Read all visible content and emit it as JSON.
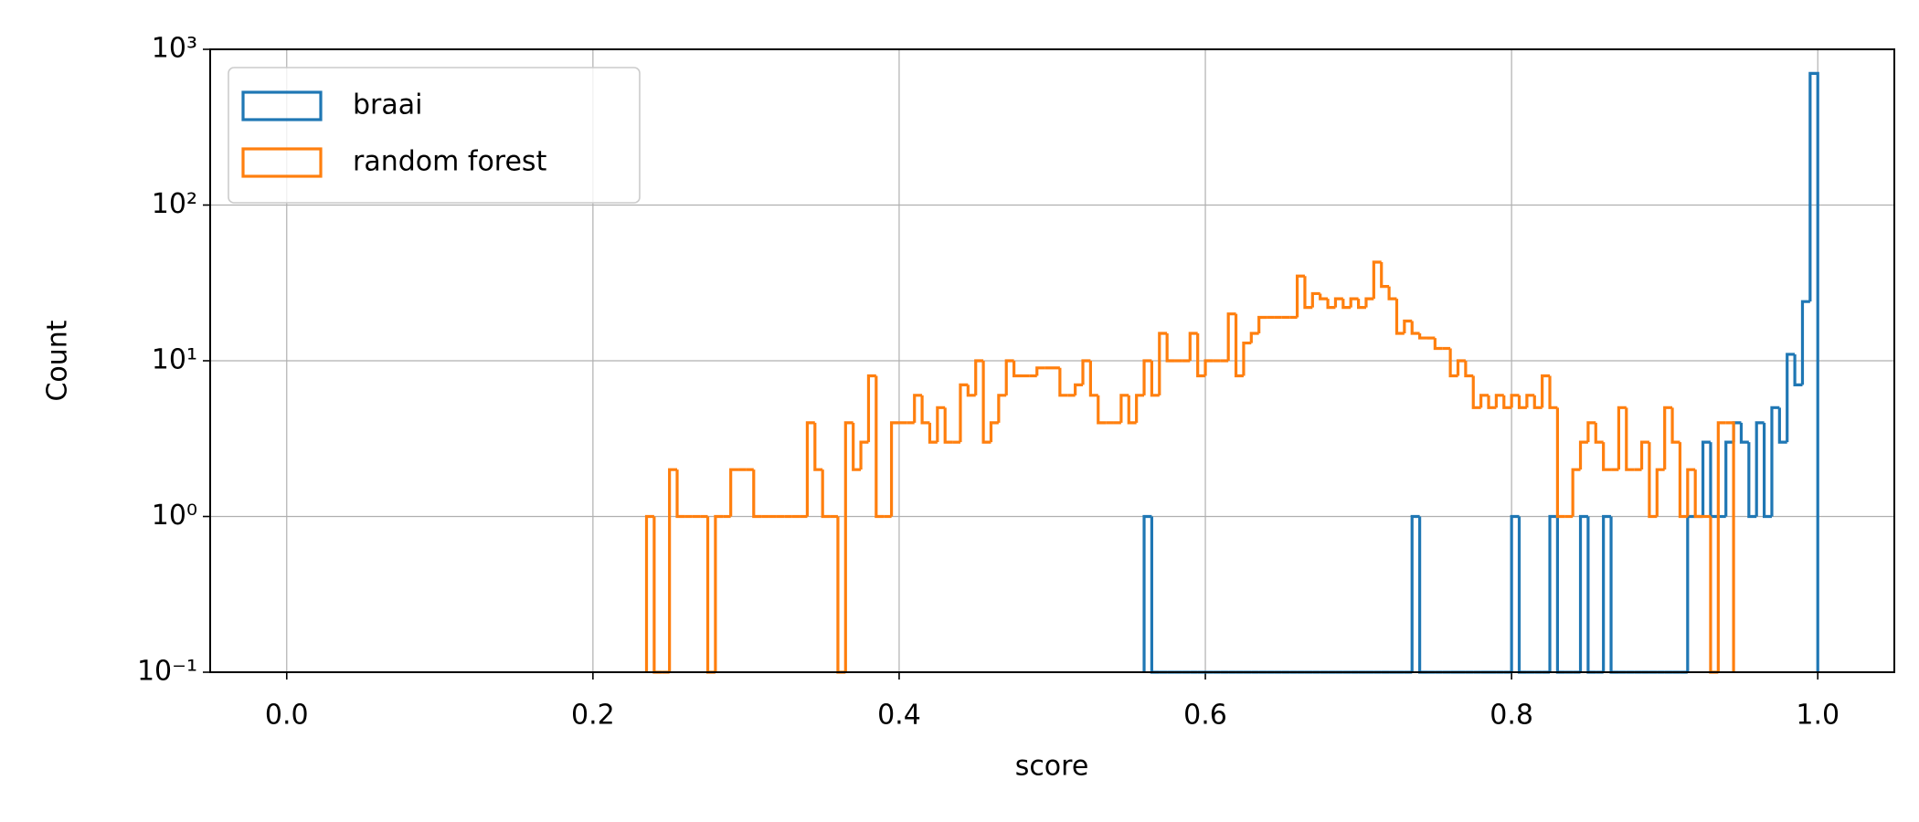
{
  "chart_data": {
    "type": "histogram",
    "x_label": "score",
    "y_label": "Count",
    "log_y": true,
    "grid": true,
    "legend": "upper left",
    "xlim": [
      -0.05,
      1.05
    ],
    "xticks": [
      {
        "value": 0,
        "label": "0.0"
      },
      0.2,
      0.4,
      0.6,
      0.8,
      {
        "value": 1,
        "label": "1.0"
      }
    ],
    "ylim": [
      0.1,
      1000
    ],
    "yticks": [
      {
        "value": 0.1,
        "label": "10⁻¹"
      },
      {
        "value": 1,
        "label": "10⁰"
      },
      {
        "value": 10,
        "label": "10¹"
      },
      {
        "value": 100,
        "label": "10²"
      },
      {
        "value": 1000,
        "label": "10³"
      }
    ],
    "series": [
      {
        "name": "braai",
        "color": "#1f77b4",
        "bins": [
          0.56,
          0.565,
          0.57,
          0.575,
          0.58,
          0.585,
          0.59,
          0.595,
          0.6,
          0.605,
          0.61,
          0.615,
          0.62,
          0.625,
          0.63,
          0.635,
          0.64,
          0.645,
          0.65,
          0.655,
          0.66,
          0.665,
          0.67,
          0.675,
          0.68,
          0.685,
          0.69,
          0.695,
          0.7,
          0.705,
          0.71,
          0.715,
          0.72,
          0.725,
          0.73,
          0.735,
          0.74,
          0.745,
          0.75,
          0.755,
          0.76,
          0.765,
          0.77,
          0.775,
          0.78,
          0.785,
          0.79,
          0.795,
          0.8,
          0.805,
          0.81,
          0.815,
          0.82,
          0.825,
          0.83,
          0.835,
          0.84,
          0.845,
          0.85,
          0.855,
          0.86,
          0.865,
          0.87,
          0.875,
          0.88,
          0.885,
          0.89,
          0.895,
          0.9,
          0.905,
          0.91,
          0.915,
          0.92,
          0.925,
          0.93,
          0.935,
          0.94,
          0.945,
          0.95,
          0.955,
          0.96,
          0.965,
          0.97,
          0.975,
          0.98,
          0.985,
          0.99,
          0.995,
          1
        ],
        "values": [
          1,
          0,
          0,
          0,
          0,
          0,
          0,
          0,
          0,
          0,
          0,
          0,
          0,
          0,
          0,
          0,
          0,
          0,
          0,
          0,
          0,
          0,
          0,
          0,
          0,
          0,
          0,
          0,
          0,
          0,
          0,
          0,
          0,
          0,
          0,
          1,
          0,
          0,
          0,
          0,
          0,
          0,
          0,
          0,
          0,
          0,
          0,
          0,
          1,
          0,
          0,
          0,
          0,
          1,
          0,
          0,
          0,
          1,
          0,
          0,
          1,
          0,
          0,
          0,
          0,
          0,
          0,
          0,
          0,
          0,
          0,
          1,
          1,
          3,
          1,
          1,
          3,
          4,
          3,
          1,
          4,
          1,
          5,
          3,
          11,
          7,
          24,
          700
        ]
      },
      {
        "name": "random forest",
        "color": "#ff7f0e",
        "bins": [
          0.235,
          0.24,
          0.245,
          0.25,
          0.255,
          0.26,
          0.265,
          0.27,
          0.275,
          0.28,
          0.285,
          0.29,
          0.295,
          0.3,
          0.305,
          0.31,
          0.315,
          0.32,
          0.325,
          0.33,
          0.335,
          0.34,
          0.345,
          0.35,
          0.355,
          0.36,
          0.365,
          0.37,
          0.375,
          0.38,
          0.385,
          0.39,
          0.395,
          0.4,
          0.405,
          0.41,
          0.415,
          0.42,
          0.425,
          0.43,
          0.435,
          0.44,
          0.445,
          0.45,
          0.455,
          0.46,
          0.465,
          0.47,
          0.475,
          0.48,
          0.485,
          0.49,
          0.495,
          0.5,
          0.505,
          0.51,
          0.515,
          0.52,
          0.525,
          0.53,
          0.535,
          0.54,
          0.545,
          0.55,
          0.555,
          0.56,
          0.565,
          0.57,
          0.575,
          0.58,
          0.585,
          0.59,
          0.595,
          0.6,
          0.605,
          0.61,
          0.615,
          0.62,
          0.625,
          0.63,
          0.635,
          0.64,
          0.645,
          0.65,
          0.655,
          0.66,
          0.665,
          0.67,
          0.675,
          0.68,
          0.685,
          0.69,
          0.695,
          0.7,
          0.705,
          0.71,
          0.715,
          0.72,
          0.725,
          0.73,
          0.735,
          0.74,
          0.745,
          0.75,
          0.755,
          0.76,
          0.765,
          0.77,
          0.775,
          0.78,
          0.785,
          0.79,
          0.795,
          0.8,
          0.805,
          0.81,
          0.815,
          0.82,
          0.825,
          0.83,
          0.835,
          0.84,
          0.845,
          0.85,
          0.855,
          0.86,
          0.865,
          0.87,
          0.875,
          0.88,
          0.885,
          0.89,
          0.895,
          0.9,
          0.905,
          0.91,
          0.915,
          0.92,
          0.925,
          0.93,
          0.935,
          0.94,
          0.945
        ],
        "values": [
          1,
          0,
          0,
          2,
          1,
          1,
          1,
          1,
          0,
          1,
          1,
          2,
          2,
          2,
          1,
          1,
          1,
          1,
          1,
          1,
          1,
          4,
          2,
          1,
          1,
          0,
          4,
          2,
          3,
          8,
          1,
          1,
          4,
          4,
          4,
          6,
          4,
          3,
          5,
          3,
          3,
          7,
          6,
          10,
          3,
          4,
          6,
          10,
          8,
          8,
          8,
          9,
          9,
          9,
          6,
          6,
          7,
          10,
          6,
          4,
          4,
          4,
          6,
          4,
          6,
          10,
          6,
          15,
          10,
          10,
          10,
          15,
          8,
          10,
          10,
          10,
          20,
          8,
          13,
          15,
          19,
          19,
          19,
          19,
          19,
          35,
          22,
          27,
          25,
          22,
          25,
          22,
          25,
          22,
          25,
          43,
          30,
          25,
          15,
          18,
          15,
          14,
          14,
          12,
          12,
          8,
          10,
          8,
          5,
          6,
          5,
          6,
          5,
          6,
          5,
          6,
          5,
          8,
          5,
          1,
          1,
          2,
          3,
          4,
          3,
          2,
          2,
          5,
          2,
          2,
          3,
          1,
          2,
          5,
          3,
          1,
          2,
          1,
          1,
          0,
          4,
          4
        ]
      }
    ]
  }
}
